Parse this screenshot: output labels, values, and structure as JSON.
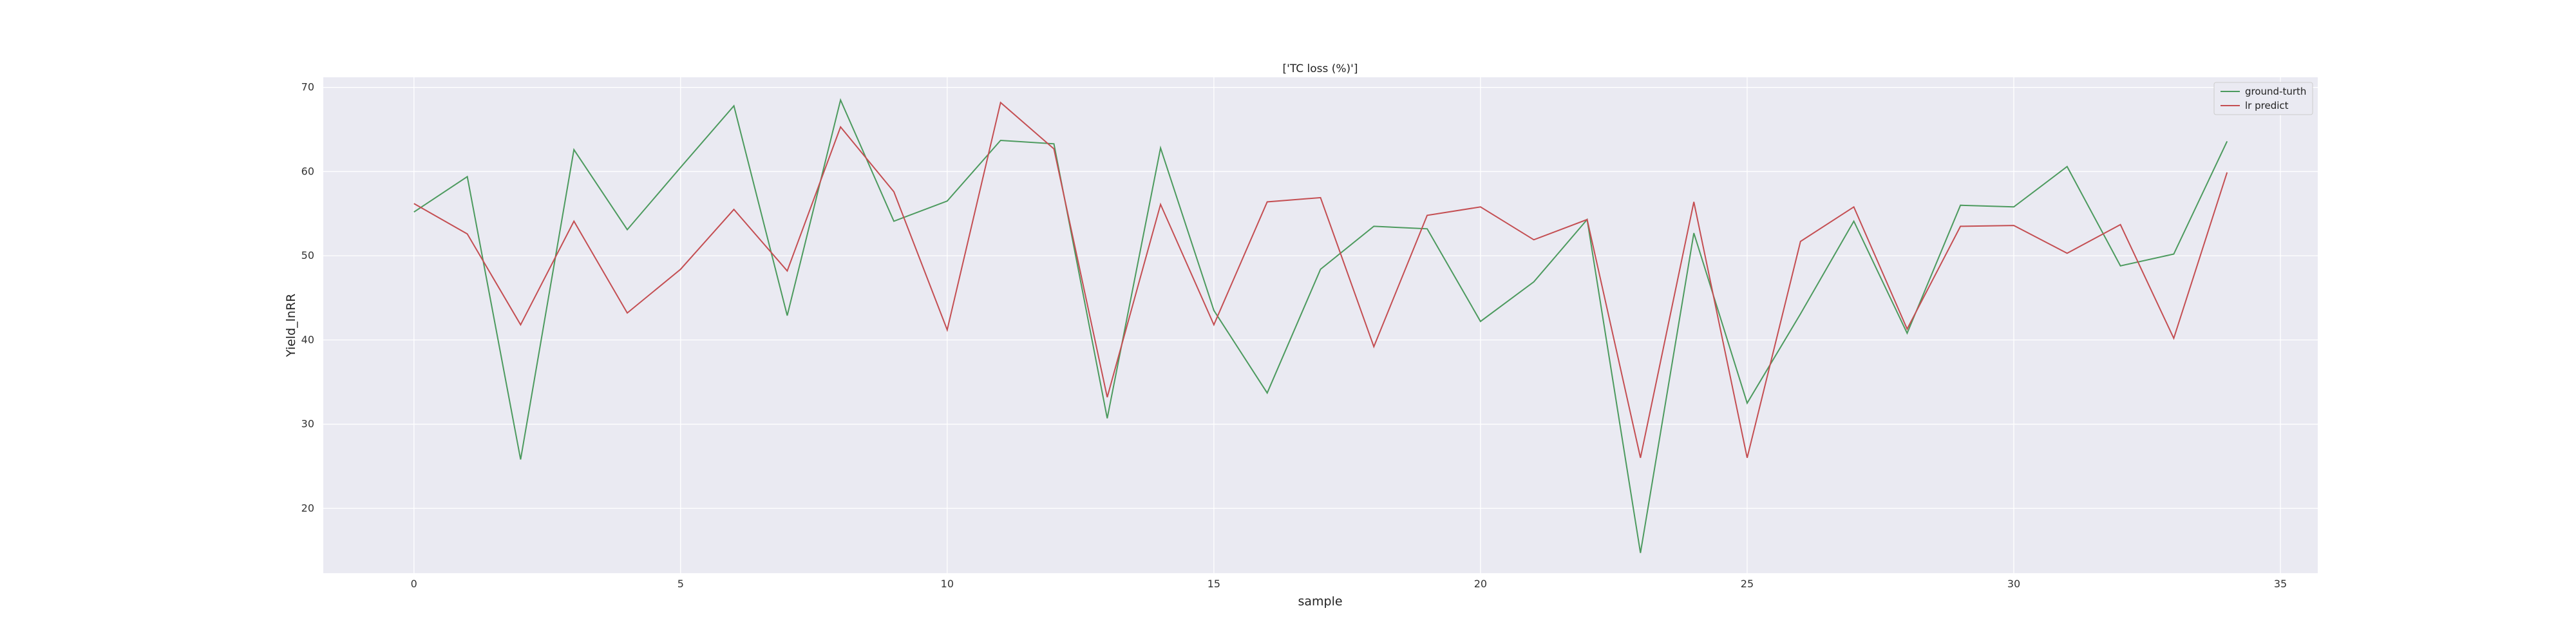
{
  "chart_data": {
    "type": "line",
    "title": "['TC loss (%)']",
    "xlabel": "sample",
    "ylabel": "Yield_lnRR",
    "xlim": [
      -1.7,
      35.7
    ],
    "ylim": [
      12.3,
      71.2
    ],
    "xticks": [
      0,
      5,
      10,
      15,
      20,
      25,
      30,
      35
    ],
    "yticks": [
      20,
      30,
      40,
      50,
      60,
      70
    ],
    "grid": true,
    "legend_position": "top-right",
    "x": [
      0,
      1,
      2,
      3,
      4,
      5,
      6,
      7,
      8,
      9,
      10,
      11,
      12,
      13,
      14,
      15,
      16,
      17,
      18,
      19,
      20,
      21,
      22,
      23,
      24,
      25,
      26,
      27,
      28,
      29,
      30,
      31,
      32,
      33,
      34
    ],
    "series": [
      {
        "name": "ground-turth",
        "color": "#4c9a5e",
        "values": [
          55.2,
          59.4,
          25.8,
          62.6,
          53.1,
          60.5,
          67.8,
          42.9,
          68.5,
          54.1,
          56.5,
          63.7,
          63.3,
          30.7,
          62.8,
          43.5,
          33.7,
          48.4,
          53.5,
          53.2,
          42.2,
          46.9,
          54.3,
          14.7,
          52.7,
          32.5,
          43.1,
          54.1,
          40.8,
          56.0,
          55.8,
          60.6,
          48.8,
          50.2,
          63.6
        ]
      },
      {
        "name": "lr predict",
        "color": "#c44e52",
        "values": [
          56.2,
          52.6,
          41.8,
          54.1,
          43.2,
          48.4,
          55.5,
          48.2,
          65.3,
          57.6,
          41.2,
          68.2,
          62.7,
          33.2,
          56.1,
          41.8,
          56.4,
          56.9,
          39.2,
          54.8,
          55.8,
          51.9,
          54.3,
          26.0,
          56.4,
          26.0,
          51.7,
          55.8,
          41.3,
          53.5,
          53.6,
          50.3,
          53.7,
          40.2,
          59.9
        ]
      }
    ]
  }
}
